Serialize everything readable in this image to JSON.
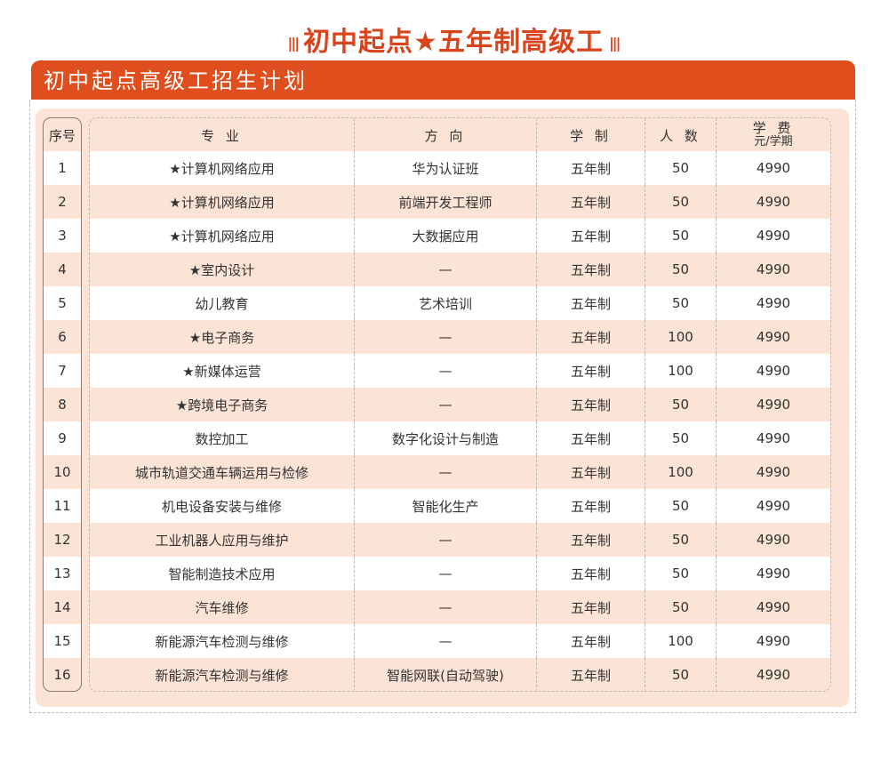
{
  "title": "初中起点★五年制高级工",
  "banner": "初中起点高级工招生计划",
  "headers": {
    "seq": "序号",
    "major": "专 业",
    "direction": "方 向",
    "system": "学 制",
    "count": "人 数",
    "fee": "学 费",
    "fee_unit": "元/学期"
  },
  "rows": [
    {
      "seq": "1",
      "major": "★计算机网络应用",
      "direction": "华为认证班",
      "system": "五年制",
      "count": "50",
      "fee": "4990"
    },
    {
      "seq": "2",
      "major": "★计算机网络应用",
      "direction": "前端开发工程师",
      "system": "五年制",
      "count": "50",
      "fee": "4990"
    },
    {
      "seq": "3",
      "major": "★计算机网络应用",
      "direction": "大数据应用",
      "system": "五年制",
      "count": "50",
      "fee": "4990"
    },
    {
      "seq": "4",
      "major": "★室内设计",
      "direction": "—",
      "system": "五年制",
      "count": "50",
      "fee": "4990"
    },
    {
      "seq": "5",
      "major": "幼儿教育",
      "direction": "艺术培训",
      "system": "五年制",
      "count": "50",
      "fee": "4990"
    },
    {
      "seq": "6",
      "major": "★电子商务",
      "direction": "—",
      "system": "五年制",
      "count": "100",
      "fee": "4990"
    },
    {
      "seq": "7",
      "major": "★新媒体运营",
      "direction": "—",
      "system": "五年制",
      "count": "100",
      "fee": "4990"
    },
    {
      "seq": "8",
      "major": "★跨境电子商务",
      "direction": "—",
      "system": "五年制",
      "count": "50",
      "fee": "4990"
    },
    {
      "seq": "9",
      "major": "数控加工",
      "direction": "数字化设计与制造",
      "system": "五年制",
      "count": "50",
      "fee": "4990"
    },
    {
      "seq": "10",
      "major": "城市轨道交通车辆运用与检修",
      "direction": "—",
      "system": "五年制",
      "count": "100",
      "fee": "4990"
    },
    {
      "seq": "11",
      "major": "机电设备安装与维修",
      "direction": "智能化生产",
      "system": "五年制",
      "count": "50",
      "fee": "4990"
    },
    {
      "seq": "12",
      "major": "工业机器人应用与维护",
      "direction": "—",
      "system": "五年制",
      "count": "50",
      "fee": "4990"
    },
    {
      "seq": "13",
      "major": "智能制造技术应用",
      "direction": "—",
      "system": "五年制",
      "count": "50",
      "fee": "4990"
    },
    {
      "seq": "14",
      "major": "汽车维修",
      "direction": "—",
      "system": "五年制",
      "count": "50",
      "fee": "4990"
    },
    {
      "seq": "15",
      "major": "新能源汽车检测与维修",
      "direction": "—",
      "system": "五年制",
      "count": "100",
      "fee": "4990"
    },
    {
      "seq": "16",
      "major": "新能源汽车检测与维修",
      "direction": "智能网联(自动驾驶)",
      "system": "五年制",
      "count": "50",
      "fee": "4990"
    }
  ],
  "colors": {
    "accent": "#e04e1e",
    "panel": "#fbe3d6"
  }
}
